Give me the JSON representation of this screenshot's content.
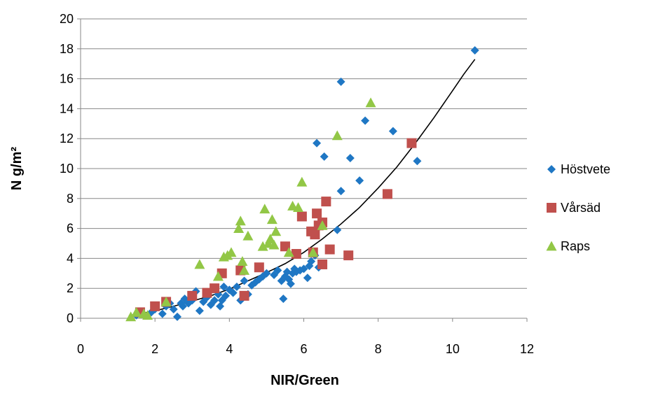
{
  "chart_data": {
    "type": "scatter",
    "title": "",
    "xlabel": "NIR/Green",
    "ylabel": "N g/m²",
    "xlim": [
      0,
      12
    ],
    "ylim": [
      0,
      20
    ],
    "xticks": [
      0,
      2,
      4,
      6,
      8,
      10,
      12
    ],
    "yticks": [
      0,
      2,
      4,
      6,
      8,
      10,
      12,
      14,
      16,
      18,
      20
    ],
    "grid": "horizontal",
    "legend_position": "right",
    "series": [
      {
        "name": "Höstvete",
        "marker": "diamond",
        "color": "#1f77c4",
        "points": [
          [
            1.5,
            0.2
          ],
          [
            1.9,
            0.4
          ],
          [
            2.0,
            0.6
          ],
          [
            2.2,
            0.3
          ],
          [
            2.3,
            0.8
          ],
          [
            2.4,
            1.0
          ],
          [
            2.5,
            0.6
          ],
          [
            2.6,
            0.1
          ],
          [
            2.7,
            1.0
          ],
          [
            2.75,
            0.8
          ],
          [
            2.8,
            1.3
          ],
          [
            2.9,
            1.0
          ],
          [
            3.0,
            1.2
          ],
          [
            3.1,
            1.8
          ],
          [
            3.2,
            0.5
          ],
          [
            3.3,
            1.1
          ],
          [
            3.4,
            1.4
          ],
          [
            3.5,
            0.9
          ],
          [
            3.6,
            1.2
          ],
          [
            3.7,
            1.6
          ],
          [
            3.75,
            0.8
          ],
          [
            3.8,
            1.2
          ],
          [
            3.85,
            2.1
          ],
          [
            3.9,
            1.5
          ],
          [
            4.0,
            1.9
          ],
          [
            4.1,
            1.7
          ],
          [
            4.2,
            2.1
          ],
          [
            4.3,
            1.2
          ],
          [
            4.4,
            2.5
          ],
          [
            4.5,
            1.6
          ],
          [
            4.6,
            2.2
          ],
          [
            4.7,
            2.4
          ],
          [
            4.8,
            2.6
          ],
          [
            4.9,
            2.8
          ],
          [
            5.0,
            3.0
          ],
          [
            5.2,
            2.9
          ],
          [
            5.3,
            3.2
          ],
          [
            5.4,
            2.5
          ],
          [
            5.45,
            1.3
          ],
          [
            5.5,
            2.8
          ],
          [
            5.55,
            3.1
          ],
          [
            5.6,
            2.6
          ],
          [
            5.65,
            2.3
          ],
          [
            5.7,
            3.0
          ],
          [
            5.75,
            3.3
          ],
          [
            5.8,
            3.1
          ],
          [
            5.9,
            3.2
          ],
          [
            6.0,
            3.3
          ],
          [
            6.1,
            2.7
          ],
          [
            6.15,
            3.5
          ],
          [
            6.2,
            3.8
          ],
          [
            6.3,
            4.2
          ],
          [
            6.4,
            3.4
          ],
          [
            6.35,
            11.7
          ],
          [
            6.55,
            10.8
          ],
          [
            6.9,
            5.9
          ],
          [
            7.0,
            8.5
          ],
          [
            7.0,
            15.8
          ],
          [
            7.25,
            10.7
          ],
          [
            7.5,
            9.2
          ],
          [
            7.65,
            13.2
          ],
          [
            8.4,
            12.5
          ],
          [
            9.05,
            10.5
          ],
          [
            10.6,
            17.9
          ]
        ]
      },
      {
        "name": "Vårsäd",
        "marker": "square",
        "color": "#c0504d",
        "points": [
          [
            1.6,
            0.4
          ],
          [
            2.0,
            0.8
          ],
          [
            2.3,
            1.1
          ],
          [
            3.0,
            1.5
          ],
          [
            3.4,
            1.7
          ],
          [
            3.6,
            2.0
          ],
          [
            3.8,
            3.0
          ],
          [
            4.3,
            3.2
          ],
          [
            4.4,
            1.5
          ],
          [
            4.8,
            3.4
          ],
          [
            5.5,
            4.8
          ],
          [
            5.8,
            4.3
          ],
          [
            5.95,
            6.8
          ],
          [
            6.2,
            5.8
          ],
          [
            6.25,
            4.4
          ],
          [
            6.3,
            5.6
          ],
          [
            6.35,
            7.0
          ],
          [
            6.4,
            6.2
          ],
          [
            6.5,
            3.6
          ],
          [
            6.5,
            6.4
          ],
          [
            6.6,
            7.8
          ],
          [
            6.7,
            4.6
          ],
          [
            7.2,
            4.2
          ],
          [
            8.25,
            8.3
          ],
          [
            8.9,
            11.7
          ]
        ]
      },
      {
        "name": "Raps",
        "marker": "triangle",
        "color": "#92c746",
        "points": [
          [
            1.35,
            0.1
          ],
          [
            1.5,
            0.4
          ],
          [
            1.7,
            0.3
          ],
          [
            1.8,
            0.2
          ],
          [
            2.3,
            1.1
          ],
          [
            3.2,
            3.6
          ],
          [
            3.7,
            2.8
          ],
          [
            3.85,
            4.1
          ],
          [
            3.95,
            4.2
          ],
          [
            4.05,
            4.4
          ],
          [
            4.25,
            6.0
          ],
          [
            4.3,
            6.5
          ],
          [
            4.35,
            3.8
          ],
          [
            4.4,
            3.2
          ],
          [
            4.5,
            5.5
          ],
          [
            4.9,
            4.8
          ],
          [
            4.95,
            7.3
          ],
          [
            5.05,
            5.0
          ],
          [
            5.1,
            5.3
          ],
          [
            5.15,
            6.6
          ],
          [
            5.2,
            4.9
          ],
          [
            5.25,
            5.8
          ],
          [
            5.6,
            4.4
          ],
          [
            5.7,
            7.5
          ],
          [
            5.85,
            7.4
          ],
          [
            5.95,
            9.1
          ],
          [
            6.25,
            4.4
          ],
          [
            6.5,
            6.2
          ],
          [
            6.9,
            12.2
          ],
          [
            7.8,
            14.4
          ]
        ]
      }
    ],
    "trendline": {
      "type": "exponential",
      "color": "#000000",
      "points": [
        [
          1.3,
          0.19
        ],
        [
          1.6,
          0.3
        ],
        [
          2.0,
          0.5
        ],
        [
          2.5,
          0.8
        ],
        [
          3.0,
          1.15
        ],
        [
          3.5,
          1.5
        ],
        [
          4.0,
          1.95
        ],
        [
          4.5,
          2.5
        ],
        [
          5.0,
          3.05
        ],
        [
          5.5,
          3.65
        ],
        [
          6.0,
          4.4
        ],
        [
          6.5,
          5.3
        ],
        [
          7.0,
          6.3
        ],
        [
          7.5,
          7.4
        ],
        [
          8.0,
          8.7
        ],
        [
          8.5,
          10.1
        ],
        [
          9.0,
          11.7
        ],
        [
          9.5,
          13.4
        ],
        [
          10.0,
          15.2
        ],
        [
          10.3,
          16.3
        ],
        [
          10.6,
          17.3
        ]
      ]
    }
  }
}
